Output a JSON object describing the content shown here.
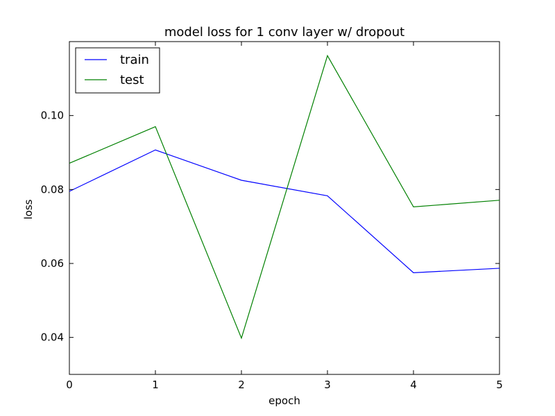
{
  "chart_data": {
    "type": "line",
    "title": "model loss for 1 conv layer w/ dropout",
    "xlabel": "epoch",
    "ylabel": "loss",
    "x": [
      0,
      1,
      2,
      3,
      4,
      5
    ],
    "xlim": [
      0,
      5
    ],
    "ylim": [
      0.03,
      0.12
    ],
    "xticks": [
      "0",
      "1",
      "2",
      "3",
      "4",
      "5"
    ],
    "yticks": [
      {
        "value": 0.04,
        "label": "0.04"
      },
      {
        "value": 0.06,
        "label": "0.06"
      },
      {
        "value": 0.08,
        "label": "0.08"
      },
      {
        "value": 0.1,
        "label": "0.10"
      }
    ],
    "grid": false,
    "legend": "top-left",
    "series": [
      {
        "name": "train",
        "color": "#0000ff",
        "values": [
          0.0795,
          0.0907,
          0.0825,
          0.0783,
          0.0575,
          0.0587
        ]
      },
      {
        "name": "test",
        "color": "#008000",
        "values": [
          0.0871,
          0.097,
          0.0398,
          0.1162,
          0.0753,
          0.0771
        ]
      }
    ]
  }
}
